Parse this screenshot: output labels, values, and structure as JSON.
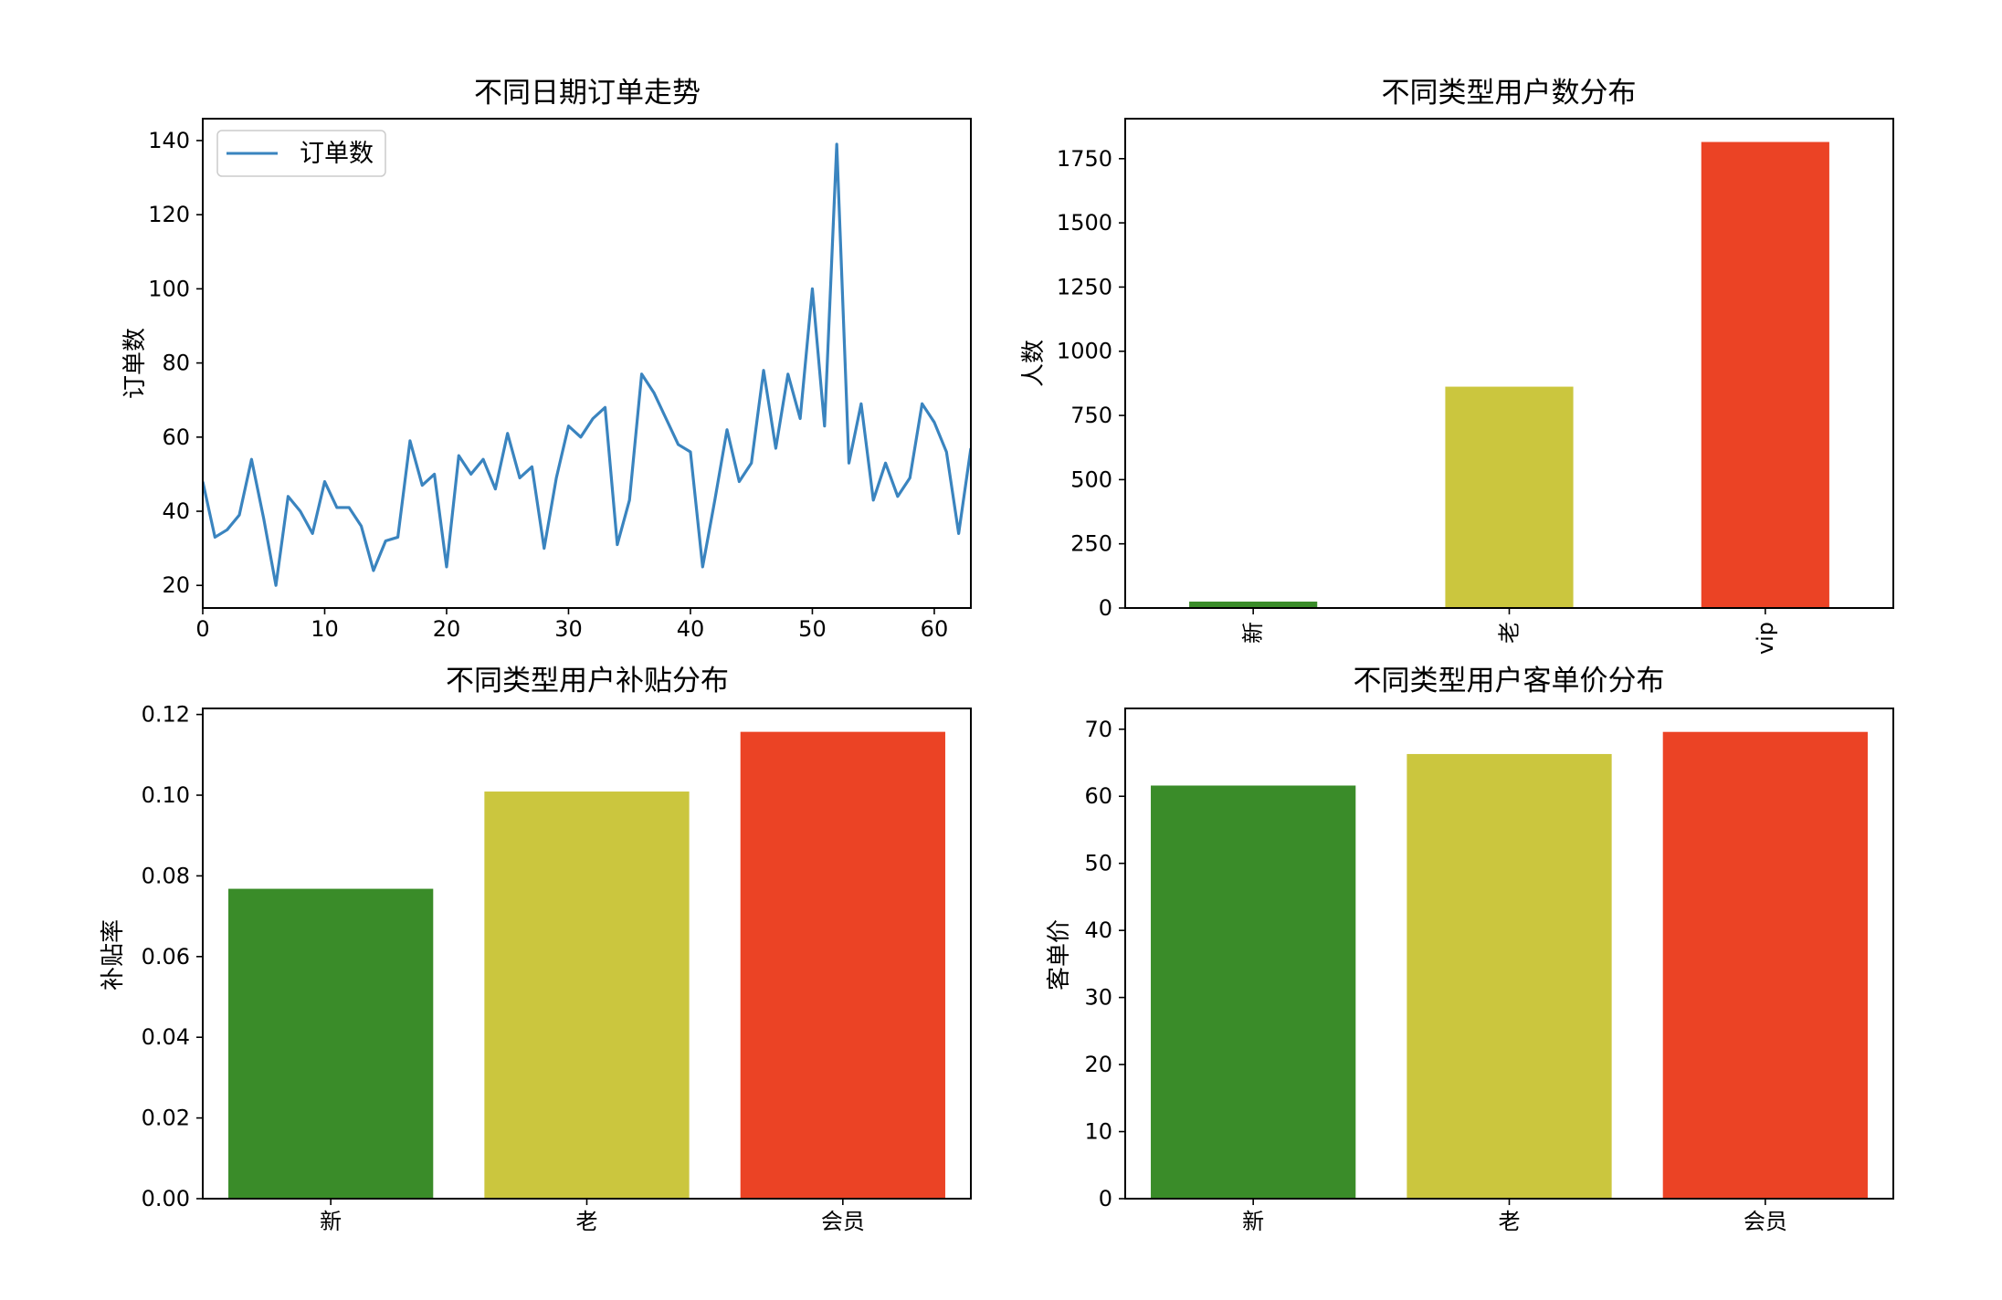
{
  "chart_data": [
    {
      "id": "orders",
      "type": "line",
      "title": "不同日期订单走势",
      "xlabel": "",
      "ylabel": "订单数",
      "xlim": [
        0,
        63
      ],
      "ylim": [
        13.9,
        145.9
      ],
      "xticks": [
        "0",
        "10",
        "20",
        "30",
        "40",
        "50",
        "60"
      ],
      "yticks": [
        "20",
        "40",
        "60",
        "80",
        "100",
        "120",
        "140"
      ],
      "legend": "upper-left",
      "series": [
        {
          "name": "订单数",
          "color": "#3a84bf",
          "values": [
            48,
            33,
            35,
            39,
            54,
            38,
            20,
            44,
            40,
            34,
            48,
            41,
            41,
            36,
            24,
            32,
            33,
            59,
            47,
            50,
            25,
            55,
            50,
            54,
            46,
            61,
            49,
            52,
            30,
            49,
            63,
            60,
            65,
            68,
            31,
            43,
            77,
            72,
            65,
            58,
            56,
            25,
            43,
            62,
            48,
            53,
            78,
            57,
            77,
            65,
            100,
            63,
            139,
            53,
            69,
            43,
            53,
            44,
            49,
            69,
            64,
            56,
            34,
            57
          ]
        }
      ]
    },
    {
      "id": "users",
      "type": "bar",
      "title": "不同类型用户数分布",
      "xlabel": "",
      "ylabel": "人数",
      "categories": [
        "新",
        "老",
        "vip"
      ],
      "values": [
        25,
        862,
        1815
      ],
      "colors": [
        "#3a8c29",
        "#cbc63e",
        "#eb4325"
      ],
      "ylim": [
        0,
        1905.75
      ],
      "yticks": [
        "0",
        "250",
        "500",
        "750",
        "1000",
        "1250",
        "1500",
        "1750"
      ],
      "xtick_rotation": 90
    },
    {
      "id": "subsidy",
      "type": "bar",
      "title": "不同类型用户补贴分布",
      "xlabel": "",
      "ylabel": "补贴率",
      "categories": [
        "新",
        "老",
        "会员"
      ],
      "values": [
        0.0768,
        0.1009,
        0.1157
      ],
      "colors": [
        "#3a8c29",
        "#cbc63e",
        "#eb4325"
      ],
      "ylim": [
        0,
        0.1215
      ],
      "yticks": [
        "0.00",
        "0.02",
        "0.04",
        "0.06",
        "0.08",
        "0.10",
        "0.12"
      ]
    },
    {
      "id": "price",
      "type": "bar",
      "title": "不同类型用户客单价分布",
      "xlabel": "",
      "ylabel": "客单价",
      "categories": [
        "新",
        "老",
        "会员"
      ],
      "values": [
        61.6,
        66.3,
        69.6
      ],
      "colors": [
        "#3a8c29",
        "#cbc63e",
        "#eb4325"
      ],
      "ylim": [
        0,
        73.1
      ],
      "yticks": [
        "0",
        "10",
        "20",
        "30",
        "40",
        "50",
        "60",
        "70"
      ]
    }
  ]
}
